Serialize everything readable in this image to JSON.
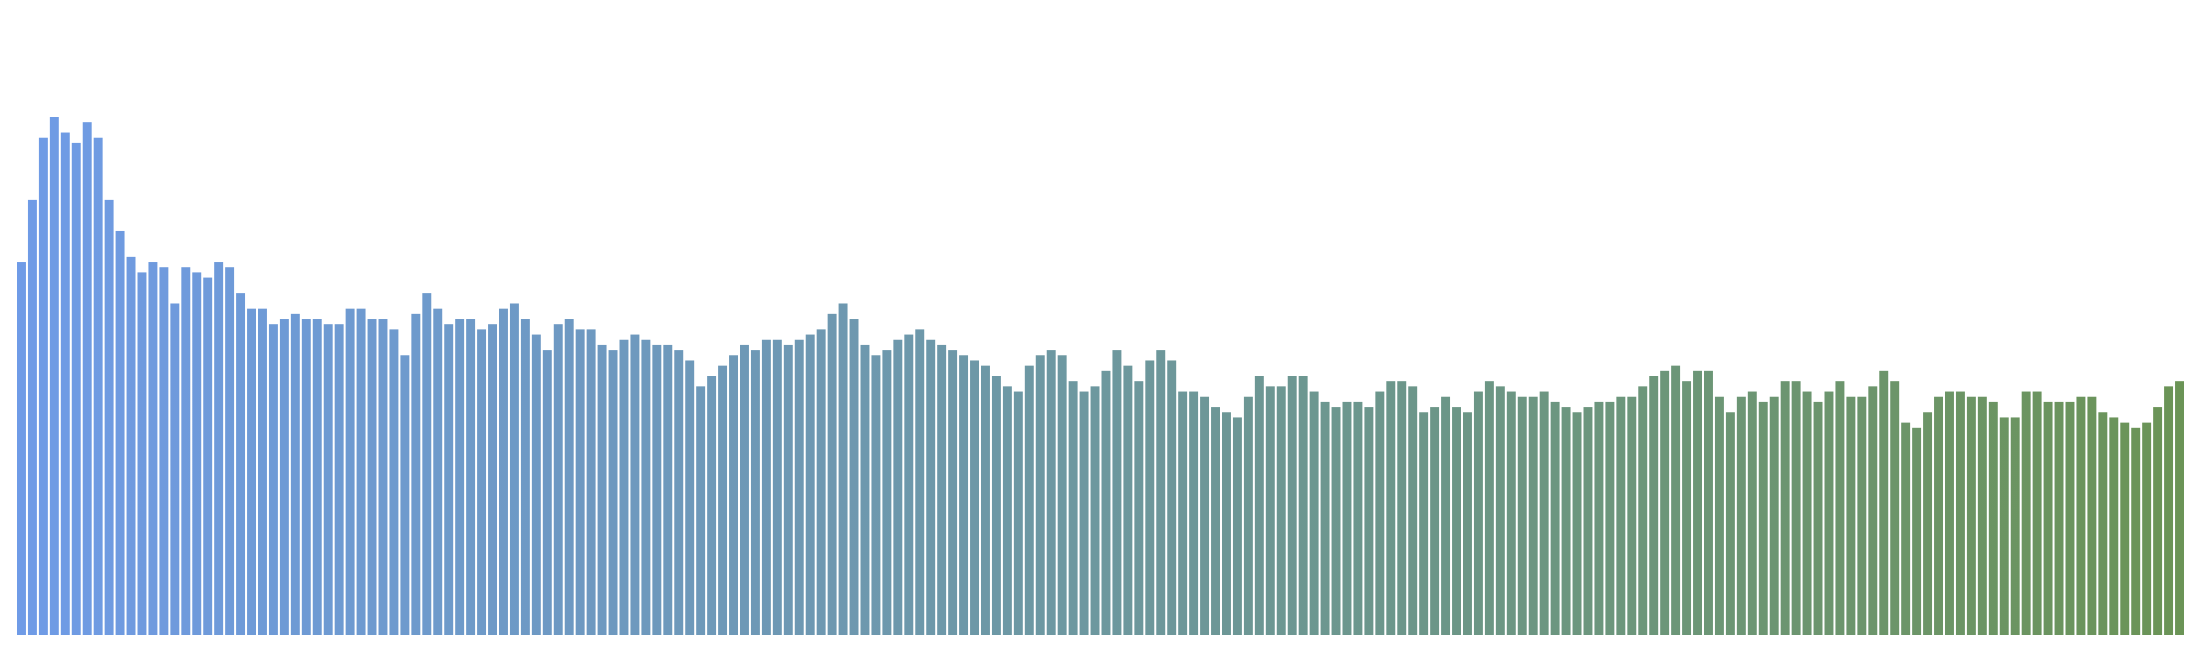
{
  "chart_data": {
    "type": "bar",
    "title": "",
    "xlabel": "",
    "ylabel": "",
    "ylim": [
      0,
      100
    ],
    "grid": false,
    "legend": "none",
    "color_gradient": {
      "start": "#6F9BE8",
      "end": "#6B9456"
    },
    "values": [
      72,
      84,
      96,
      100,
      97,
      95,
      99,
      96,
      84,
      78,
      73,
      70,
      72,
      71,
      64,
      71,
      70,
      69,
      72,
      71,
      66,
      63,
      63,
      60,
      61,
      62,
      61,
      61,
      60,
      60,
      63,
      63,
      61,
      61,
      59,
      54,
      62,
      66,
      63,
      60,
      61,
      61,
      59,
      60,
      63,
      64,
      61,
      58,
      55,
      60,
      61,
      59,
      59,
      56,
      55,
      57,
      58,
      57,
      56,
      56,
      55,
      53,
      48,
      50,
      52,
      54,
      56,
      55,
      57,
      57,
      56,
      57,
      58,
      59,
      62,
      64,
      61,
      56,
      54,
      55,
      57,
      58,
      59,
      57,
      56,
      55,
      54,
      53,
      52,
      50,
      48,
      47,
      52,
      54,
      55,
      54,
      49,
      47,
      48,
      51,
      55,
      52,
      49,
      53,
      55,
      53,
      47,
      47,
      46,
      44,
      43,
      42,
      46,
      50,
      48,
      48,
      50,
      50,
      47,
      45,
      44,
      45,
      45,
      44,
      47,
      49,
      49,
      48,
      43,
      44,
      46,
      44,
      43,
      47,
      49,
      48,
      47,
      46,
      46,
      47,
      45,
      44,
      43,
      44,
      45,
      45,
      46,
      46,
      48,
      50,
      51,
      52,
      49,
      51,
      51,
      46,
      43,
      46,
      47,
      45,
      46,
      49,
      49,
      47,
      45,
      47,
      49,
      46,
      46,
      48,
      51,
      49,
      41,
      40,
      43,
      46,
      47,
      47,
      46,
      46,
      45,
      42,
      42,
      47,
      47,
      45,
      45,
      45,
      46,
      46,
      43,
      42,
      41,
      40,
      41,
      44,
      48,
      49
    ]
  }
}
